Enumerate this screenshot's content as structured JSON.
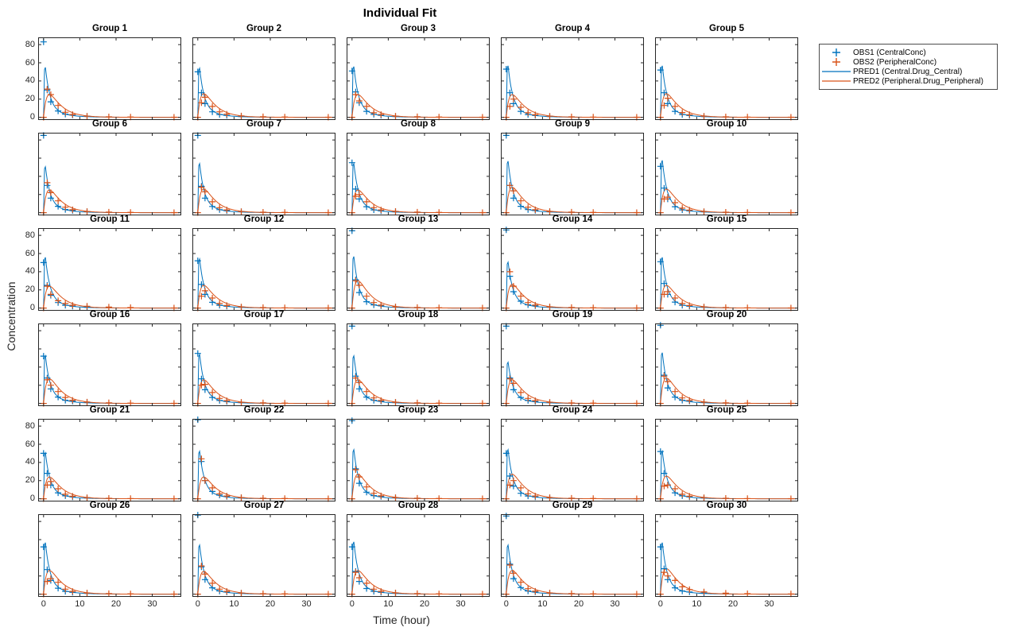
{
  "figure": {
    "title": "Individual Fit",
    "xlabel": "Time (hour)",
    "ylabel": "Concentration"
  },
  "legend": {
    "items": [
      {
        "label": "OBS1 (CentralConc)",
        "swatch": "plus-marker",
        "color": "#0072BD"
      },
      {
        "label": "OBS2 (PeripheralConc)",
        "swatch": "plus-marker",
        "color": "#D95319"
      },
      {
        "label": "PRED1 (Central.Drug_Central)",
        "swatch": "line",
        "color": "#0072BD"
      },
      {
        "label": "PRED2 (Peripheral.Drug_Peripheral)",
        "swatch": "line",
        "color": "#D95319"
      }
    ]
  },
  "chart_data": {
    "type": "line",
    "layout": "small-multiples 6 rows x 5 cols",
    "title": "Individual Fit",
    "xlabel": "Time (hour)",
    "ylabel": "Concentration",
    "xlim": [
      -1.5,
      38
    ],
    "ylim": [
      -3,
      88
    ],
    "xticks": [
      0,
      10,
      20,
      30
    ],
    "yticks": [
      0,
      20,
      40,
      60,
      80
    ],
    "colors": {
      "obs1": "#0072BD",
      "obs2": "#D95319",
      "pred1": "#0072BD",
      "pred2": "#D95319",
      "axis": "#262626"
    },
    "series_legend": [
      "OBS1 (CentralConc)",
      "OBS2 (PeripheralConc)",
      "PRED1 (Central.Drug_Central)",
      "PRED2 (Peripheral.Drug_Peripheral)"
    ],
    "obs_times": [
      0,
      1,
      2,
      4,
      6,
      8,
      12,
      18,
      24,
      36
    ],
    "pred_model": {
      "rise_end": 0.3,
      "pred1_fast_frac": 0.8,
      "pred1_fast_rate": 0.8,
      "pred1_slow_rate": 0.25,
      "pred2_slow_rate": 0.3,
      "pred2_fast_rate": 1.1,
      "pred2_norm": 0.447
    },
    "groups": [
      {
        "name": "Group 1",
        "pred1_peak": 63,
        "pred2_peak": 25,
        "obs1": [
          83,
          30,
          17,
          7,
          3.5,
          2.5,
          1
        ],
        "obs2": [
          0,
          31,
          25,
          13,
          5.5,
          3,
          1.2,
          0.5,
          0.3,
          0.1
        ]
      },
      {
        "name": "Group 2",
        "pred1_peak": 62,
        "pred2_peak": 26,
        "obs1": [
          50,
          27,
          15,
          6,
          3,
          2,
          0.8
        ],
        "obs2": [
          0,
          16,
          22,
          12,
          6,
          3.5,
          1.5,
          0.6,
          0.3,
          0.1
        ]
      },
      {
        "name": "Group 3",
        "pred1_peak": 64,
        "pred2_peak": 25,
        "obs1": [
          51,
          28,
          16,
          6.5,
          3.2,
          2.2,
          0.9
        ],
        "obs2": [
          0,
          25,
          18,
          12,
          5,
          3,
          1.3,
          0.6,
          0.3,
          0.1
        ]
      },
      {
        "name": "Group 4",
        "pred1_peak": 65,
        "pred2_peak": 25,
        "obs1": [
          53,
          27,
          15,
          6.5,
          3,
          2,
          0.9
        ],
        "obs2": [
          0,
          12,
          20,
          11,
          5,
          2.8,
          1.2,
          0.5,
          0.25,
          0.1
        ]
      },
      {
        "name": "Group 5",
        "pred1_peak": 65,
        "pred2_peak": 26,
        "obs1": [
          52,
          27,
          15,
          6.5,
          3,
          2,
          0.9
        ],
        "obs2": [
          0,
          13,
          21,
          12,
          5.2,
          2.9,
          1.2,
          0.5,
          0.25,
          0.1
        ]
      },
      {
        "name": "Group 6",
        "pred1_peak": 58,
        "pred2_peak": 25,
        "obs1": [
          85,
          30,
          16,
          7,
          3.5,
          2.3,
          1
        ],
        "obs2": [
          0,
          33,
          22,
          13,
          6,
          3.2,
          1.3,
          0.6,
          0.3,
          0.1
        ]
      },
      {
        "name": "Group 7",
        "pred1_peak": 62,
        "pred2_peak": 26,
        "obs1": [
          85,
          29,
          16,
          6.8,
          3.3,
          2.2,
          1
        ],
        "obs2": [
          0,
          28,
          23,
          12,
          5.5,
          3,
          1.2,
          0.5,
          0.3,
          0.1
        ]
      },
      {
        "name": "Group 8",
        "pred1_peak": 62,
        "pred2_peak": 25,
        "obs1": [
          55,
          26,
          15,
          6.5,
          3,
          2,
          0.9
        ],
        "obs2": [
          0,
          18,
          20,
          12,
          5.5,
          3,
          1.4,
          0.6,
          0.3,
          0.1
        ]
      },
      {
        "name": "Group 9",
        "pred1_peak": 65,
        "pred2_peak": 28,
        "obs1": [
          85,
          30,
          16,
          7,
          3.4,
          2.3,
          1
        ],
        "obs2": [
          0,
          30,
          24,
          13,
          6,
          3.2,
          1.3,
          0.6,
          0.3,
          0.1
        ]
      },
      {
        "name": "Group 10",
        "pred1_peak": 66,
        "pred2_peak": 26,
        "obs1": [
          51,
          27,
          15,
          6.5,
          3,
          2,
          0.9
        ],
        "obs2": [
          0,
          15,
          17,
          11,
          5,
          2.8,
          1.2,
          0.5,
          0.25,
          0.1
        ]
      },
      {
        "name": "Group 11",
        "pred1_peak": 64,
        "pred2_peak": 24,
        "obs1": [
          50,
          25,
          14,
          6,
          3,
          2,
          0.8
        ],
        "obs2": [
          0,
          24,
          15,
          8,
          5,
          3,
          2,
          1,
          0.5,
          0.1
        ]
      },
      {
        "name": "Group 12",
        "pred1_peak": 62,
        "pred2_peak": 25,
        "obs1": [
          52,
          26,
          15,
          6.3,
          3,
          2,
          0.9
        ],
        "obs2": [
          0,
          13,
          19,
          11,
          5,
          2.8,
          1.2,
          0.5,
          0.25,
          0.1
        ]
      },
      {
        "name": "Group 13",
        "pred1_peak": 65,
        "pred2_peak": 30,
        "obs1": [
          85,
          31,
          17,
          7,
          3.5,
          2.4,
          1
        ],
        "obs2": [
          0,
          30,
          25,
          13,
          6,
          3.2,
          1.3,
          0.6,
          0.3,
          0.1
        ]
      },
      {
        "name": "Group 14",
        "pred1_peak": 58,
        "pred2_peak": 26,
        "obs1": [
          86,
          35,
          18,
          7.5,
          3.6,
          2.4,
          1
        ],
        "obs2": [
          0,
          40,
          24,
          13,
          6,
          3.2,
          1.3,
          0.6,
          0.3,
          0.1
        ]
      },
      {
        "name": "Group 15",
        "pred1_peak": 64,
        "pred2_peak": 25,
        "obs1": [
          51,
          27,
          15,
          6.5,
          3,
          2,
          0.9
        ],
        "obs2": [
          0,
          15,
          18,
          11,
          5,
          2.8,
          1.2,
          0.5,
          0.25,
          0.1
        ]
      },
      {
        "name": "Group 16",
        "pred1_peak": 60,
        "pred2_peak": 27,
        "obs1": [
          52,
          28,
          16,
          7,
          3.5,
          2.3,
          1
        ],
        "obs2": [
          0,
          26,
          20,
          13,
          6.5,
          3.5,
          1.5,
          0.7,
          0.35,
          0.1
        ]
      },
      {
        "name": "Group 17",
        "pred1_peak": 62,
        "pred2_peak": 26,
        "obs1": [
          55,
          27,
          15,
          6.5,
          3.2,
          2.1,
          0.9
        ],
        "obs2": [
          0,
          20,
          21,
          12,
          5.5,
          3,
          1.3,
          0.6,
          0.3,
          0.1
        ]
      },
      {
        "name": "Group 18",
        "pred1_peak": 60,
        "pred2_peak": 26,
        "obs1": [
          85,
          30,
          16,
          7,
          3.4,
          2.3,
          1
        ],
        "obs2": [
          0,
          28,
          23,
          13,
          6,
          3.2,
          1.3,
          0.6,
          0.3,
          0.1
        ]
      },
      {
        "name": "Group 19",
        "pred1_peak": 52,
        "pred2_peak": 26,
        "obs1": [
          85,
          28,
          15,
          6.5,
          3.2,
          2.1,
          0.9
        ],
        "obs2": [
          0,
          27,
          22,
          12,
          5.5,
          3,
          1.2,
          0.5,
          0.3,
          0.1
        ]
      },
      {
        "name": "Group 20",
        "pred1_peak": 64,
        "pred2_peak": 28,
        "obs1": [
          86,
          31,
          17,
          7,
          3.5,
          2.4,
          1
        ],
        "obs2": [
          0,
          30,
          24,
          13,
          6,
          3.3,
          1.4,
          0.6,
          0.3,
          0.1
        ]
      },
      {
        "name": "Group 21",
        "pred1_peak": 58,
        "pred2_peak": 24,
        "obs1": [
          50,
          28,
          15,
          6.5,
          3.2,
          2.1,
          0.9
        ],
        "obs2": [
          0,
          15,
          19,
          11,
          5,
          2.8,
          1.2,
          0.5,
          0.25,
          0.1
        ]
      },
      {
        "name": "Group 22",
        "pred1_peak": 60,
        "pred2_peak": 24,
        "obs1": [
          87,
          41,
          20,
          8,
          4,
          2.5,
          1
        ],
        "obs2": [
          0,
          44,
          20,
          12,
          5.5,
          3,
          1.3,
          0.6,
          0.3,
          0.1
        ]
      },
      {
        "name": "Group 23",
        "pred1_peak": 62,
        "pred2_peak": 27,
        "obs1": [
          86,
          33,
          17,
          7.2,
          3.5,
          2.4,
          1
        ],
        "obs2": [
          0,
          32,
          24,
          13,
          6,
          3.2,
          1.3,
          0.6,
          0.3,
          0.1
        ]
      },
      {
        "name": "Group 24",
        "pred1_peak": 62,
        "pred2_peak": 27,
        "obs1": [
          50,
          25,
          14,
          6,
          3,
          2,
          0.9
        ],
        "obs2": [
          0,
          15,
          20,
          12,
          5.5,
          3,
          1.3,
          0.6,
          0.3,
          0.1
        ]
      },
      {
        "name": "Group 25",
        "pred1_peak": 60,
        "pred2_peak": 25,
        "obs1": [
          52,
          28,
          15,
          6.5,
          3.2,
          2.1,
          0.9
        ],
        "obs2": [
          0,
          14,
          15,
          11,
          5,
          2.8,
          1.2,
          0.5,
          0.25,
          0.1
        ]
      },
      {
        "name": "Group 26",
        "pred1_peak": 65,
        "pred2_peak": 26,
        "obs1": [
          52,
          27,
          15,
          6.5,
          3,
          2,
          0.9
        ],
        "obs2": [
          0,
          14,
          17,
          13,
          5.5,
          3,
          1.3,
          0.6,
          0.3,
          0.1
        ]
      },
      {
        "name": "Group 27",
        "pred1_peak": 62,
        "pred2_peak": 25,
        "obs1": [
          87,
          30,
          16,
          7,
          3.4,
          2.3,
          1
        ],
        "obs2": [
          0,
          31,
          22,
          12,
          5.5,
          3,
          1.2,
          0.5,
          0.3,
          0.1
        ]
      },
      {
        "name": "Group 28",
        "pred1_peak": 66,
        "pred2_peak": 26,
        "obs1": [
          52,
          25,
          14,
          6.2,
          3,
          2,
          0.9
        ],
        "obs2": [
          0,
          24,
          18,
          12,
          5.5,
          3,
          1.4,
          0.6,
          0.3,
          0.1
        ]
      },
      {
        "name": "Group 29",
        "pred1_peak": 62,
        "pred2_peak": 26,
        "obs1": [
          86,
          33,
          17,
          7.2,
          3.5,
          2.4,
          1
        ],
        "obs2": [
          0,
          32,
          23,
          13,
          6,
          3.2,
          1.3,
          0.6,
          0.3,
          0.1
        ]
      },
      {
        "name": "Group 30",
        "pred1_peak": 65,
        "pred2_peak": 28,
        "obs1": [
          52,
          28,
          16,
          7,
          3.5,
          2.4,
          1
        ],
        "obs2": [
          0,
          24,
          20,
          15,
          8,
          5,
          2.5,
          1,
          0.5,
          0.2
        ]
      }
    ]
  }
}
